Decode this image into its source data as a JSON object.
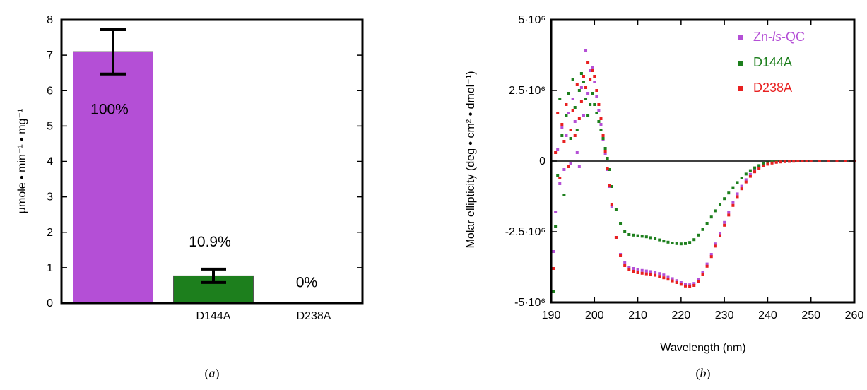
{
  "colors": {
    "purple": "#b44fd6",
    "green": "#1d7f1d",
    "red": "#e82020",
    "axis": "#000000"
  },
  "chart_data": [
    {
      "panel": "(a)",
      "panel_letter": "a",
      "type": "bar",
      "categories": [
        "",
        "D144A",
        "D238A"
      ],
      "values": [
        7.1,
        0.77,
        0
      ],
      "error_low": [
        6.47,
        0.58,
        null
      ],
      "error_high": [
        7.72,
        0.96,
        null
      ],
      "bar_colors": [
        "#b44fd6",
        "#1d7f1d",
        "#b44fd6"
      ],
      "bar_labels": [
        "100%",
        "10.9%",
        "0%"
      ],
      "ylabel": "µmole • min⁻¹ • mg⁻¹",
      "ylim": [
        0,
        8
      ],
      "yticks": [
        "0",
        "1",
        "2",
        "3",
        "4",
        "5",
        "6",
        "7",
        "8"
      ],
      "grid": false
    },
    {
      "panel": "(b)",
      "panel_letter": "b",
      "type": "scatter",
      "xlabel": "Wavelength (nm)",
      "ylabel": "Molar ellipticity (deg • cm² • dmol⁻¹)",
      "xlim": [
        190,
        260
      ],
      "ylim": [
        -5000000,
        5000000
      ],
      "xticks": [
        "190",
        "200",
        "210",
        "220",
        "230",
        "240",
        "250",
        "260"
      ],
      "yticks": [
        "-5·10⁶",
        "-2.5·10⁶",
        "0",
        "2.5·10⁶",
        "5·10⁶"
      ],
      "grid": false,
      "legend_position": "top-right",
      "series": [
        {
          "name": "Zn-ls-QC",
          "color": "#b44fd6",
          "x": [
            190.5,
            191,
            191.5,
            192,
            192.5,
            193,
            193.5,
            194,
            194.5,
            195,
            195.5,
            196,
            196.5,
            197,
            197.5,
            198,
            198.5,
            199,
            199.5,
            200,
            200.5,
            201,
            201.5,
            202,
            202.5,
            203,
            203.5,
            204,
            205,
            206,
            207,
            208,
            209,
            210,
            211,
            212,
            213,
            214,
            215,
            216,
            217,
            218,
            219,
            220,
            221,
            222,
            223,
            224,
            225,
            226,
            227,
            228,
            229,
            230,
            231,
            232,
            233,
            234,
            235,
            236,
            237,
            238,
            239,
            240,
            241,
            242,
            243,
            244,
            245,
            246,
            247,
            248,
            249,
            250,
            252,
            254,
            256,
            258,
            260
          ],
          "y": [
            -3200000,
            -1800000,
            400000,
            -800000,
            1200000,
            -300000,
            900000,
            1700000,
            -100000,
            2200000,
            1400000,
            300000,
            -200000,
            2600000,
            1600000,
            3900000,
            2400000,
            3200000,
            3300000,
            2800000,
            2300000,
            1800000,
            1300000,
            750000,
            250000,
            -300000,
            -900000,
            -1600000,
            -2700000,
            -3300000,
            -3600000,
            -3750000,
            -3800000,
            -3850000,
            -3870000,
            -3890000,
            -3910000,
            -3940000,
            -3980000,
            -4030000,
            -4090000,
            -4160000,
            -4230000,
            -4300000,
            -4360000,
            -4380000,
            -4330000,
            -4180000,
            -3940000,
            -3640000,
            -3300000,
            -2930000,
            -2550000,
            -2170000,
            -1810000,
            -1470000,
            -1160000,
            -890000,
            -660000,
            -470000,
            -320000,
            -210000,
            -130000,
            -80000,
            -50000,
            -30000,
            -20000,
            -10000,
            -5000,
            0,
            0,
            0,
            0,
            0,
            0,
            0,
            0,
            0,
            0
          ]
        },
        {
          "name": "D144A",
          "color": "#1d7f1d",
          "x": [
            190.5,
            191,
            191.5,
            192,
            192.5,
            193,
            193.5,
            194,
            194.5,
            195,
            195.5,
            196,
            196.5,
            197,
            197.5,
            198,
            198.5,
            199,
            199.5,
            200,
            200.5,
            201,
            201.5,
            202,
            202.5,
            203,
            203.5,
            204,
            205,
            206,
            207,
            208,
            209,
            210,
            211,
            212,
            213,
            214,
            215,
            216,
            217,
            218,
            219,
            220,
            221,
            222,
            223,
            224,
            225,
            226,
            227,
            228,
            229,
            230,
            231,
            232,
            233,
            234,
            235,
            236,
            237,
            238,
            239,
            240,
            241,
            242,
            243,
            244,
            245,
            246,
            247,
            248,
            249,
            250,
            252,
            254,
            256,
            258,
            260
          ],
          "y": [
            -4600000,
            -2300000,
            -500000,
            2200000,
            900000,
            -1200000,
            1600000,
            2400000,
            800000,
            2900000,
            1900000,
            1100000,
            2500000,
            3100000,
            2800000,
            2200000,
            1600000,
            2000000,
            2400000,
            2000000,
            1700000,
            1400000,
            1100000,
            800000,
            450000,
            100000,
            -300000,
            -900000,
            -1700000,
            -2200000,
            -2500000,
            -2600000,
            -2620000,
            -2640000,
            -2660000,
            -2680000,
            -2710000,
            -2750000,
            -2790000,
            -2830000,
            -2870000,
            -2900000,
            -2920000,
            -2930000,
            -2920000,
            -2880000,
            -2780000,
            -2620000,
            -2420000,
            -2200000,
            -1980000,
            -1760000,
            -1540000,
            -1330000,
            -1130000,
            -940000,
            -760000,
            -600000,
            -460000,
            -340000,
            -240000,
            -160000,
            -100000,
            -60000,
            -30000,
            -15000,
            -5000,
            0,
            0,
            0,
            0,
            0,
            0,
            0,
            0,
            0,
            0,
            0,
            0
          ]
        },
        {
          "name": "D238A",
          "color": "#e82020",
          "x": [
            190.5,
            191,
            191.5,
            192,
            192.5,
            193,
            193.5,
            194,
            194.5,
            195,
            195.5,
            196,
            196.5,
            197,
            197.5,
            198,
            198.5,
            199,
            199.5,
            200,
            200.5,
            201,
            201.5,
            202,
            202.5,
            203,
            203.5,
            204,
            205,
            206,
            207,
            208,
            209,
            210,
            211,
            212,
            213,
            214,
            215,
            216,
            217,
            218,
            219,
            220,
            221,
            222,
            223,
            224,
            225,
            226,
            227,
            228,
            229,
            230,
            231,
            232,
            233,
            234,
            235,
            236,
            237,
            238,
            239,
            240,
            241,
            242,
            243,
            244,
            245,
            246,
            247,
            248,
            249,
            250,
            252,
            254,
            256,
            258,
            260
          ],
          "y": [
            -3800000,
            300000,
            1700000,
            -600000,
            1300000,
            700000,
            2000000,
            -200000,
            1100000,
            1800000,
            900000,
            2700000,
            1500000,
            2100000,
            3000000,
            2600000,
            3500000,
            2900000,
            3200000,
            3000000,
            2500000,
            2000000,
            1500000,
            900000,
            350000,
            -250000,
            -850000,
            -1550000,
            -2700000,
            -3350000,
            -3700000,
            -3850000,
            -3900000,
            -3950000,
            -3970000,
            -3990000,
            -4010000,
            -4040000,
            -4080000,
            -4130000,
            -4180000,
            -4240000,
            -4300000,
            -4360000,
            -4420000,
            -4440000,
            -4400000,
            -4250000,
            -4010000,
            -3720000,
            -3380000,
            -3010000,
            -2640000,
            -2270000,
            -1910000,
            -1570000,
            -1260000,
            -980000,
            -740000,
            -540000,
            -380000,
            -260000,
            -170000,
            -110000,
            -70000,
            -45000,
            -30000,
            -20000,
            -10000,
            -5000,
            0,
            0,
            0,
            0,
            0,
            0,
            0,
            0,
            0
          ]
        }
      ]
    }
  ],
  "legend": {
    "items": [
      {
        "pre": "Zn-",
        "ital": "ls",
        "post": "-QC",
        "color": "#b44fd6"
      },
      {
        "pre": "D144A",
        "ital": "",
        "post": "",
        "color": "#1d7f1d"
      },
      {
        "pre": "D238A",
        "ital": "",
        "post": "",
        "color": "#e82020"
      }
    ]
  }
}
